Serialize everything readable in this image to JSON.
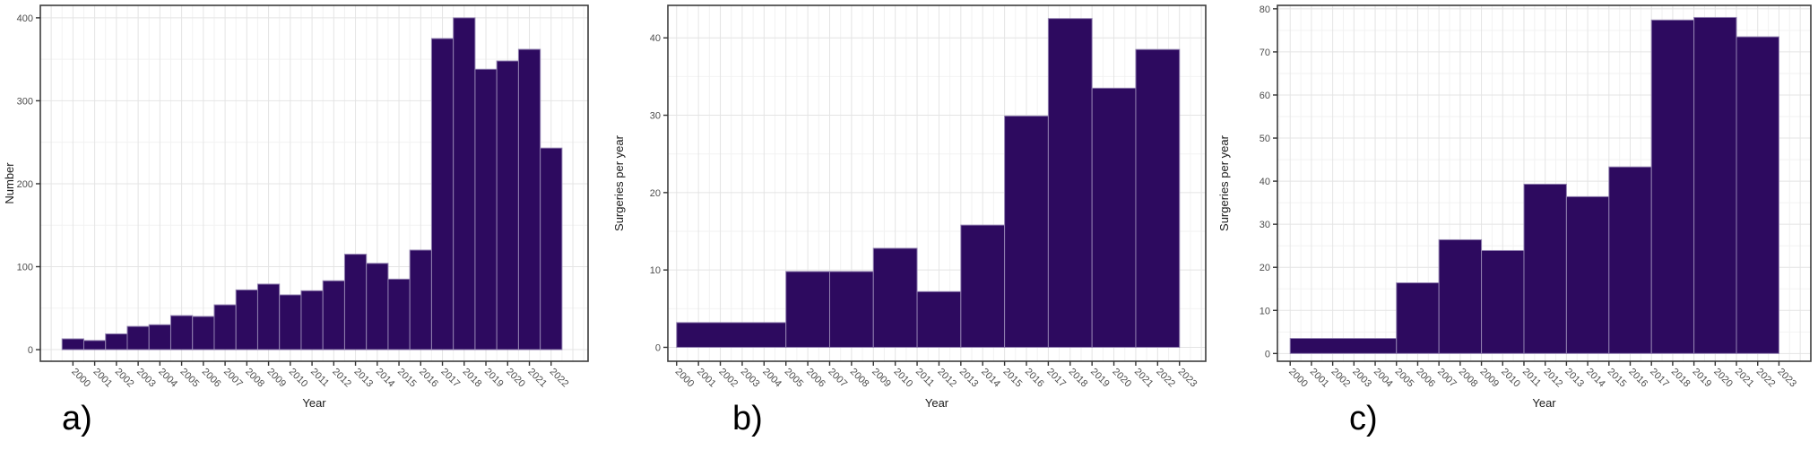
{
  "figure": {
    "background": "#ffffff",
    "bar_fill": "#2d0a5f",
    "bar_stroke": "#9180b0",
    "panel_border": "#3c3c3c",
    "grid_major": "#e4e4e4",
    "grid_minor": "#f2f2f2",
    "tick_color": "#333333",
    "tick_text_color": "#4d4d4d",
    "axis_title_color": "#1a1a1a"
  },
  "chart_data": [
    {
      "type": "bar",
      "letter": "a)",
      "xlabel": "Year",
      "ylabel": "Number",
      "x_ticks": [
        2000,
        2001,
        2002,
        2003,
        2004,
        2005,
        2006,
        2007,
        2008,
        2009,
        2010,
        2011,
        2012,
        2013,
        2014,
        2015,
        2016,
        2017,
        2018,
        2019,
        2020,
        2021,
        2022
      ],
      "y_ticks": [
        0,
        100,
        200,
        300,
        400
      ],
      "x_domain": [
        1998.5,
        2023.7
      ],
      "y_domain": [
        -14,
        415
      ],
      "grid": true,
      "years": [
        2000,
        2001,
        2002,
        2003,
        2004,
        2005,
        2006,
        2007,
        2008,
        2009,
        2010,
        2011,
        2012,
        2013,
        2014,
        2015,
        2016,
        2017,
        2018,
        2019,
        2020,
        2021,
        2022
      ],
      "values": [
        13,
        11,
        19,
        28,
        30,
        41,
        40,
        54,
        72,
        79,
        66,
        71,
        83,
        115,
        104,
        85,
        120,
        375,
        400,
        338,
        348,
        362,
        243
      ]
    },
    {
      "type": "bar",
      "letter": "b)",
      "xlabel": "Year",
      "ylabel": "Surgeries per year",
      "x_ticks": [
        2000,
        2001,
        2002,
        2003,
        2004,
        2005,
        2006,
        2007,
        2008,
        2009,
        2010,
        2011,
        2012,
        2013,
        2014,
        2015,
        2016,
        2017,
        2018,
        2019,
        2020,
        2021,
        2022,
        2023
      ],
      "y_ticks": [
        0,
        10,
        20,
        30,
        40
      ],
      "x_domain": [
        1999.6,
        2024.2
      ],
      "y_domain": [
        -1.8,
        44.2
      ],
      "grid": true,
      "bin_edges": [
        [
          2000,
          2005
        ],
        [
          2005,
          2007
        ],
        [
          2007,
          2009
        ],
        [
          2009,
          2011
        ],
        [
          2011,
          2013
        ],
        [
          2013,
          2015
        ],
        [
          2015,
          2017
        ],
        [
          2017,
          2019
        ],
        [
          2019,
          2021
        ],
        [
          2021,
          2023
        ]
      ],
      "values": [
        3.2,
        9.8,
        9.8,
        12.8,
        7.2,
        15.8,
        29.9,
        42.5,
        33.5,
        38.5
      ]
    },
    {
      "type": "bar",
      "letter": "c)",
      "xlabel": "Year",
      "ylabel": "Surgeries per year",
      "x_ticks": [
        2000,
        2001,
        2002,
        2003,
        2004,
        2005,
        2006,
        2007,
        2008,
        2009,
        2010,
        2011,
        2012,
        2013,
        2014,
        2015,
        2016,
        2017,
        2018,
        2019,
        2020,
        2021,
        2022,
        2023
      ],
      "y_ticks": [
        0,
        10,
        20,
        30,
        40,
        50,
        60,
        70,
        80
      ],
      "x_domain": [
        1999.4,
        2024.5
      ],
      "y_domain": [
        -1.8,
        80.8
      ],
      "grid": true,
      "bin_edges": [
        [
          2000,
          2005
        ],
        [
          2005,
          2007
        ],
        [
          2007,
          2009
        ],
        [
          2009,
          2011
        ],
        [
          2011,
          2013
        ],
        [
          2013,
          2015
        ],
        [
          2015,
          2017
        ],
        [
          2017,
          2019
        ],
        [
          2019,
          2021
        ],
        [
          2021,
          2023
        ]
      ],
      "values": [
        3.5,
        16.4,
        26.4,
        23.9,
        39.3,
        36.4,
        43.3,
        77.4,
        78.0,
        73.5
      ]
    }
  ]
}
